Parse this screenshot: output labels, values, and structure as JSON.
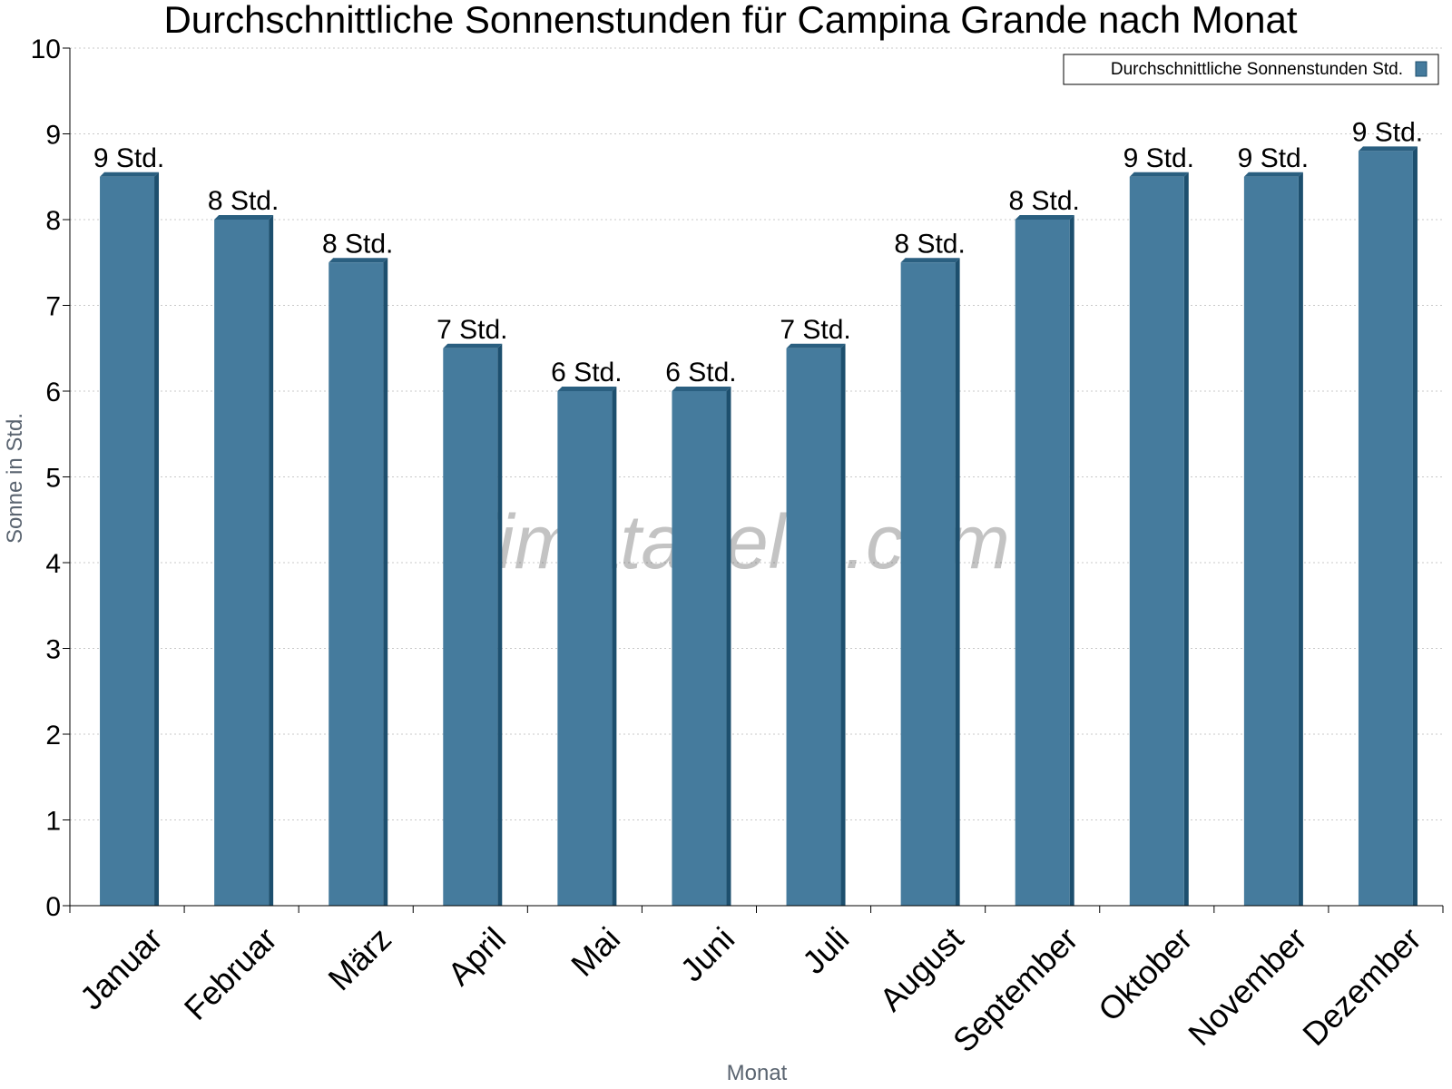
{
  "chart_data": {
    "type": "bar",
    "title": "Durchschnittliche Sonnenstunden für Campina Grande nach Monat",
    "xlabel": "Monat",
    "ylabel": "Sonne in Std.",
    "ylim": [
      0,
      10
    ],
    "yticks": [
      0,
      1,
      2,
      3,
      4,
      5,
      6,
      7,
      8,
      9,
      10
    ],
    "grid": true,
    "legend_position": "top-right",
    "categories": [
      "Januar",
      "Februar",
      "März",
      "April",
      "Mai",
      "Juni",
      "Juli",
      "August",
      "September",
      "Oktober",
      "November",
      "Dezember"
    ],
    "series": [
      {
        "name": "Durchschnittliche Sonnenstunden Std.",
        "values": [
          8.5,
          8.0,
          7.5,
          6.5,
          6.0,
          6.0,
          6.5,
          7.5,
          8.0,
          8.5,
          8.5,
          8.8
        ],
        "labels": [
          "9 Std.",
          "8 Std.",
          "8 Std.",
          "7 Std.",
          "6 Std.",
          "6 Std.",
          "7 Std.",
          "8 Std.",
          "8 Std.",
          "9 Std.",
          "9 Std.",
          "9 Std."
        ],
        "color": "#457b9d"
      }
    ]
  },
  "watermark": "klimatabelle.com",
  "colors": {
    "bar_face": "#457b9d",
    "bar_side": "#1d4f6e",
    "bar_top": "#2a5f80",
    "grid": "#c8c8c8",
    "axis": "#000000"
  }
}
